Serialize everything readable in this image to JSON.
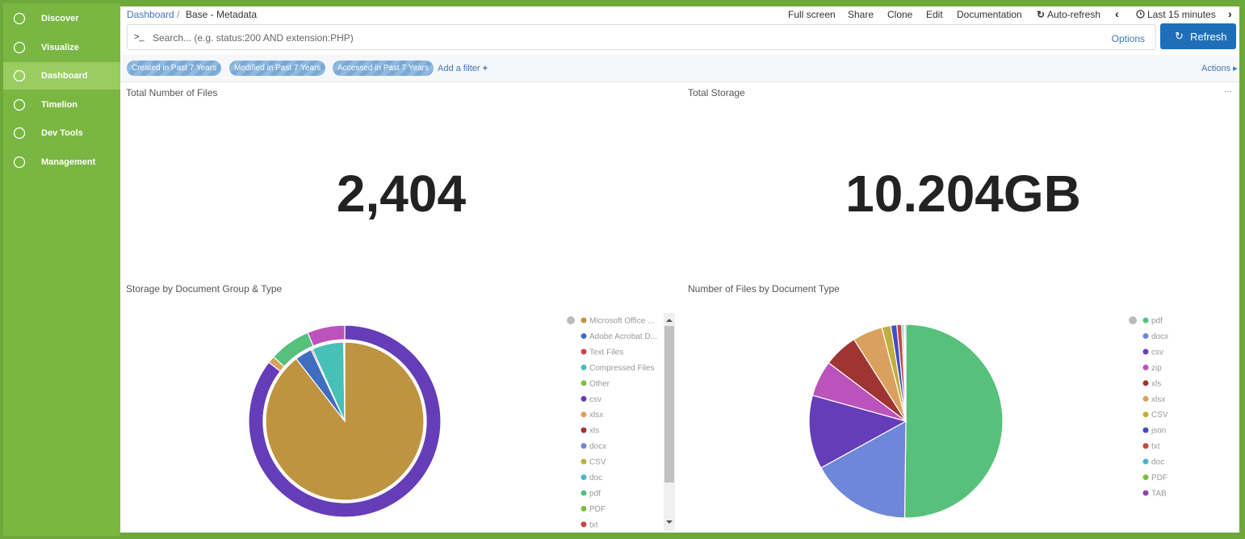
{
  "sidebar": {
    "items": [
      "Discover",
      "Visualize",
      "Dashboard",
      "Timelion",
      "Dev Tools",
      "Management"
    ],
    "active": 2
  },
  "breadcrumb": [
    "Dashboard",
    "Base - Metadata"
  ],
  "top_menu": [
    "Full screen",
    "Share",
    "Clone",
    "Edit",
    "Documentation",
    "Auto-refresh"
  ],
  "time_range": "Last 15 minutes",
  "search": {
    "prompt": ">_",
    "placeholder": "Search... (e.g. status:200 AND extension:PHP)",
    "options": "Options",
    "button": "Refresh"
  },
  "filters": [
    "Created in Past 7 Years",
    "Modified in Past 7 Years",
    "Accessed in Past 7 Years"
  ],
  "add_filter": "Add a filter",
  "actions": "Actions",
  "metrics": [
    {
      "title": "Total Number of Files",
      "value": "2,404"
    },
    {
      "title": "Total Storage",
      "value": "10.204GB"
    }
  ],
  "charts": [
    {
      "type": "pie",
      "title": "Storage by Document Group & Type",
      "rings": [
        {
          "values": [
            89.5,
            3.5,
            0.3,
            6.5,
            0.2
          ],
          "colors": [
            "#bf9440",
            "#3f6ec0",
            "#d0424c",
            "#47c0b8",
            "#7cbf40"
          ]
        },
        {
          "values": [
            85.5,
            1.2,
            7,
            6.3
          ],
          "colors": [
            "#663db8",
            "#daa05d",
            "#57c17b",
            "#bc52bc"
          ]
        }
      ],
      "legend": {
        "labels": [
          "Microsoft Office ...",
          "Adobe Acrobat D...",
          "Text Files",
          "Compressed Files",
          "Other",
          "csv",
          "xlsx",
          "xls",
          "docx",
          "CSV",
          "doc",
          "pdf",
          "PDF",
          "txt"
        ],
        "colors": [
          "#bf9440",
          "#3f6ec0",
          "#d0424c",
          "#47c0b8",
          "#7cbf40",
          "#663db8",
          "#daa05d",
          "#9e3533",
          "#6f87d8",
          "#bfaf40",
          "#47b9c0",
          "#57c17b",
          "#7cbf40",
          "#c5483e"
        ]
      }
    },
    {
      "type": "pie",
      "title": "Number of Files by Document Type",
      "rings": [
        {
          "values": [
            50.2,
            16.8,
            12.3,
            6,
            5.7,
            5,
            1.5,
            1,
            0.8,
            0.3,
            0.2,
            0.2
          ],
          "colors": [
            "#57c17b",
            "#6f87d8",
            "#663db8",
            "#bc52bc",
            "#9e3533",
            "#daa05d",
            "#bfaf40",
            "#4050bf",
            "#c5483e",
            "#47b9c0",
            "#7cbf40",
            "#8e44ad"
          ]
        }
      ],
      "legend": {
        "labels": [
          "pdf",
          "docx",
          "csv",
          "zip",
          "xls",
          "xlsx",
          "CSV",
          "json",
          "txt",
          "doc",
          "PDF",
          "TAB"
        ],
        "colors": [
          "#57c17b",
          "#6f87d8",
          "#663db8",
          "#bc52bc",
          "#9e3533",
          "#daa05d",
          "#bfaf40",
          "#4050bf",
          "#c5483e",
          "#47b9c0",
          "#7cbf40",
          "#8e44ad"
        ]
      }
    }
  ]
}
